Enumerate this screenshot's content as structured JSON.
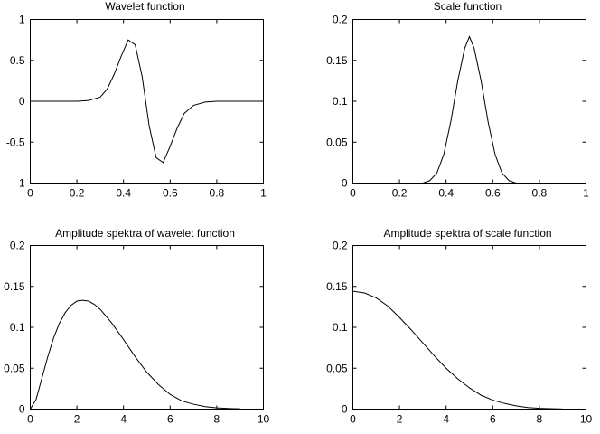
{
  "chart_data": [
    {
      "type": "line",
      "title": "Wavelet function",
      "xlabel": "",
      "ylabel": "",
      "xlim": [
        0,
        1
      ],
      "ylim": [
        -1,
        1
      ],
      "xticks": [
        0,
        0.2,
        0.4,
        0.6,
        0.8,
        1
      ],
      "xtick_labels": [
        "0",
        "0.2",
        "0.4",
        "0.6",
        "0.8",
        "1"
      ],
      "yticks": [
        -1,
        -0.5,
        0,
        0.5,
        1
      ],
      "ytick_labels": [
        "-1",
        "-0.5",
        "0",
        "0.5",
        "1"
      ],
      "grid": false,
      "series": [
        {
          "x": [
            0,
            0.05,
            0.1,
            0.15,
            0.2,
            0.25,
            0.3,
            0.33,
            0.36,
            0.39,
            0.42,
            0.45,
            0.48,
            0.51,
            0.54,
            0.57,
            0.6,
            0.63,
            0.66,
            0.7,
            0.75,
            0.8,
            0.85,
            0.9,
            0.95,
            1
          ],
          "y": [
            0,
            0,
            0,
            0,
            0,
            0.01,
            0.05,
            0.15,
            0.33,
            0.55,
            0.75,
            0.69,
            0.3,
            -0.3,
            -0.69,
            -0.75,
            -0.55,
            -0.33,
            -0.15,
            -0.05,
            -0.01,
            0,
            0,
            0,
            0,
            0
          ]
        }
      ]
    },
    {
      "type": "line",
      "title": "Scale function",
      "xlabel": "",
      "ylabel": "",
      "xlim": [
        0,
        1
      ],
      "ylim": [
        0,
        0.2
      ],
      "xticks": [
        0,
        0.2,
        0.4,
        0.6,
        0.8,
        1
      ],
      "xtick_labels": [
        "0",
        "0.2",
        "0.4",
        "0.6",
        "0.8",
        "1"
      ],
      "yticks": [
        0,
        0.05,
        0.1,
        0.15,
        0.2
      ],
      "ytick_labels": [
        "0",
        "0.05",
        "0.1",
        "0.15",
        "0.2"
      ],
      "grid": false,
      "series": [
        {
          "x": [
            0.3,
            0.33,
            0.36,
            0.39,
            0.42,
            0.45,
            0.48,
            0.5,
            0.52,
            0.55,
            0.58,
            0.61,
            0.64,
            0.67,
            0.7
          ],
          "y": [
            0.0,
            0.003,
            0.012,
            0.035,
            0.075,
            0.125,
            0.165,
            0.179,
            0.165,
            0.125,
            0.075,
            0.035,
            0.012,
            0.003,
            0.0
          ]
        }
      ]
    },
    {
      "type": "line",
      "title": "Amplitude spektra of wavelet function",
      "xlabel": "",
      "ylabel": "",
      "xlim": [
        0,
        10
      ],
      "ylim": [
        0,
        0.2
      ],
      "xticks": [
        0,
        2,
        4,
        6,
        8,
        10
      ],
      "xtick_labels": [
        "0",
        "2",
        "4",
        "6",
        "8",
        "10"
      ],
      "yticks": [
        0,
        0.05,
        0.1,
        0.15,
        0.2
      ],
      "ytick_labels": [
        "0",
        "0.05",
        "0.1",
        "0.15",
        "0.2"
      ],
      "grid": false,
      "series": [
        {
          "x": [
            0,
            0.25,
            0.5,
            0.75,
            1,
            1.25,
            1.5,
            1.75,
            2,
            2.25,
            2.5,
            2.75,
            3,
            3.5,
            4,
            4.5,
            5,
            5.5,
            6,
            6.5,
            7,
            7.5,
            8,
            8.5,
            9
          ],
          "y": [
            0,
            0.012,
            0.038,
            0.064,
            0.087,
            0.105,
            0.118,
            0.127,
            0.132,
            0.133,
            0.132,
            0.128,
            0.122,
            0.105,
            0.085,
            0.064,
            0.045,
            0.03,
            0.018,
            0.01,
            0.006,
            0.003,
            0.0015,
            0.0008,
            0.0004
          ]
        }
      ]
    },
    {
      "type": "line",
      "title": "Amplitude spektra of scale function",
      "xlabel": "",
      "ylabel": "",
      "xlim": [
        0,
        10
      ],
      "ylim": [
        0,
        0.2
      ],
      "xticks": [
        0,
        2,
        4,
        6,
        8,
        10
      ],
      "xtick_labels": [
        "0",
        "2",
        "4",
        "6",
        "8",
        "10"
      ],
      "yticks": [
        0,
        0.05,
        0.1,
        0.15,
        0.2
      ],
      "ytick_labels": [
        "0",
        "0.05",
        "0.1",
        "0.15",
        "0.2"
      ],
      "grid": false,
      "series": [
        {
          "x": [
            0,
            0.5,
            1,
            1.5,
            2,
            2.5,
            3,
            3.5,
            4,
            4.5,
            5,
            5.5,
            6,
            6.5,
            7,
            7.5,
            8,
            8.5,
            9
          ],
          "y": [
            0.144,
            0.142,
            0.136,
            0.126,
            0.112,
            0.097,
            0.081,
            0.065,
            0.05,
            0.037,
            0.026,
            0.017,
            0.011,
            0.007,
            0.004,
            0.002,
            0.001,
            0.0005,
            0.0002
          ]
        }
      ]
    }
  ]
}
